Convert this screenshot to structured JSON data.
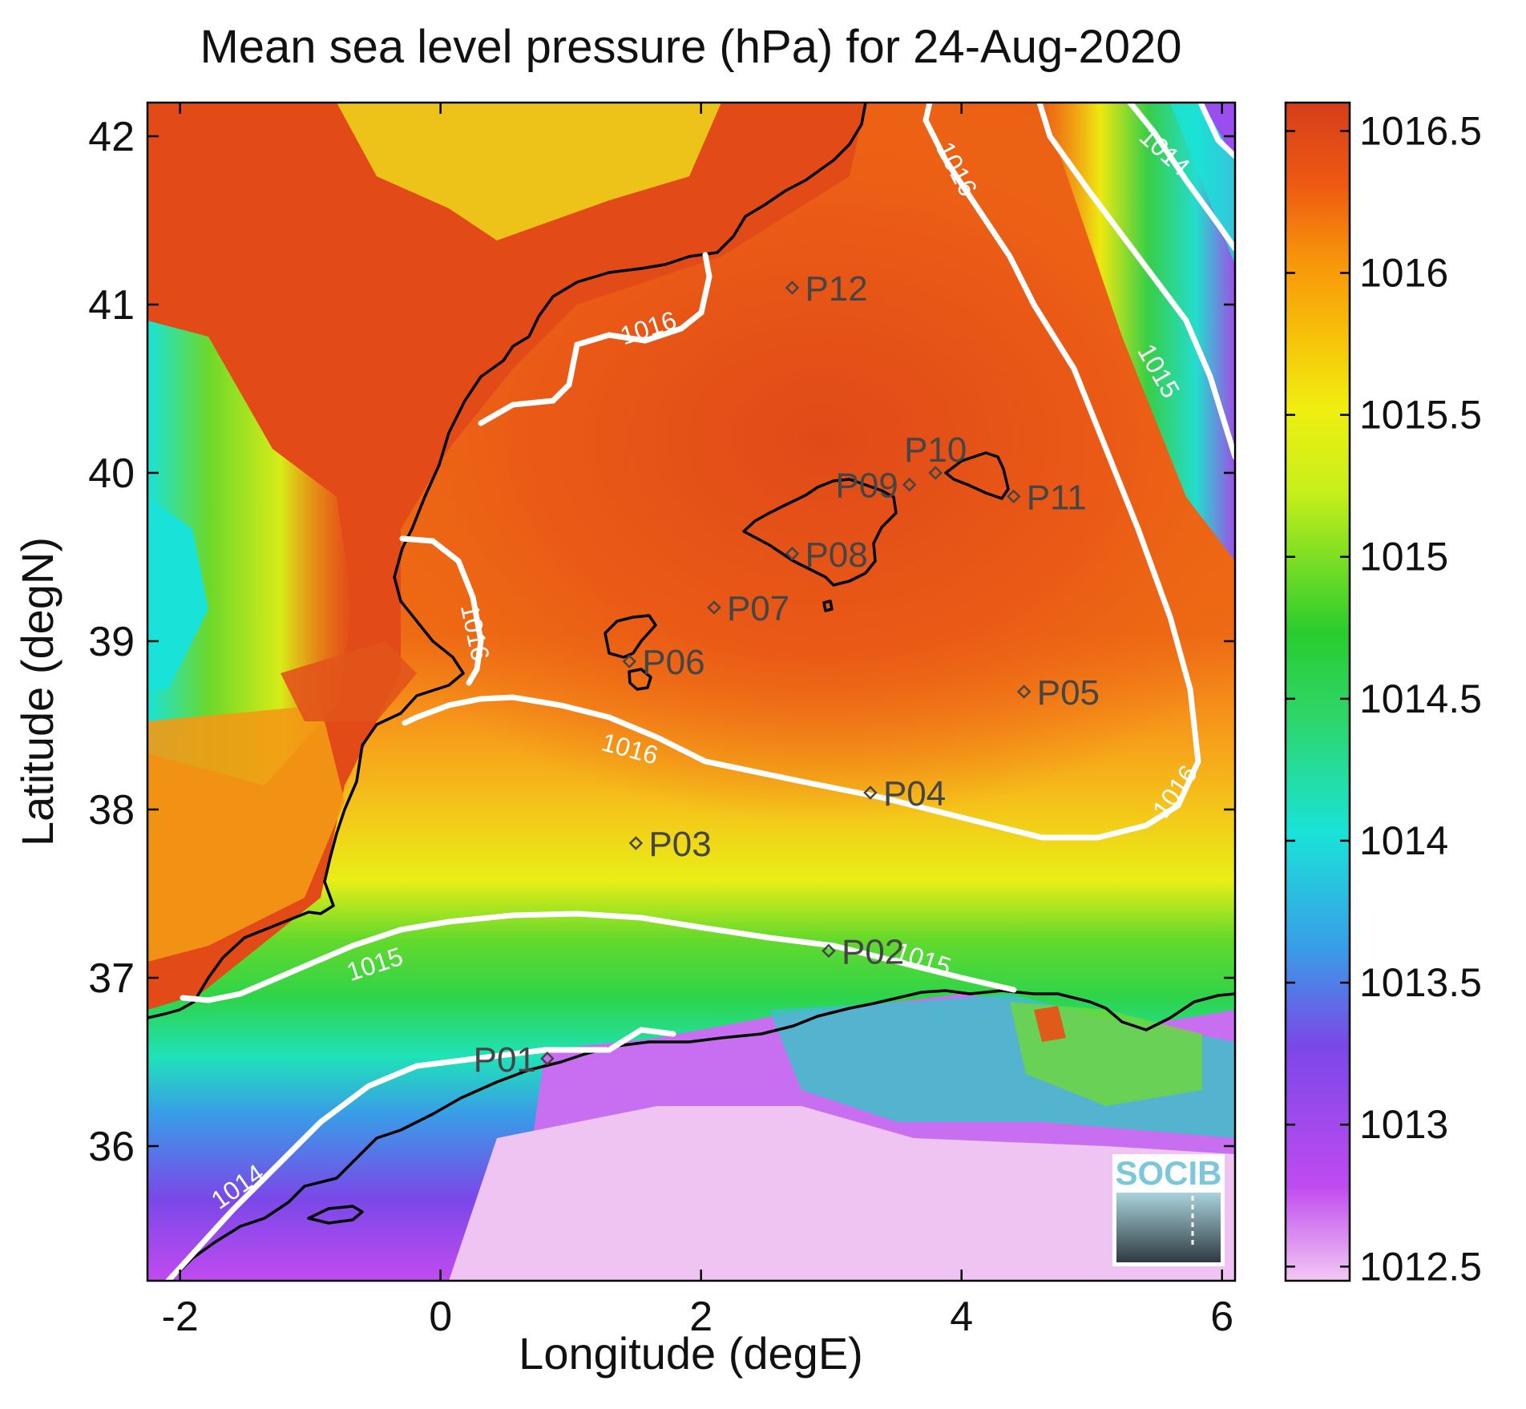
{
  "title": "Mean sea level pressure (hPa) for 24-Aug-2020",
  "xlabel": "Longitude (degE)",
  "ylabel": "Latitude (degN)",
  "xlim": [
    -2.25,
    6.1
  ],
  "ylim": [
    35.2,
    42.2
  ],
  "xticks": [
    {
      "value": -2,
      "label": "-2"
    },
    {
      "value": 0,
      "label": "0"
    },
    {
      "value": 2,
      "label": "2"
    },
    {
      "value": 4,
      "label": "4"
    },
    {
      "value": 6,
      "label": "6"
    }
  ],
  "yticks": [
    {
      "value": 36,
      "label": "36"
    },
    {
      "value": 37,
      "label": "37"
    },
    {
      "value": 38,
      "label": "38"
    },
    {
      "value": 39,
      "label": "39"
    },
    {
      "value": 40,
      "label": "40"
    },
    {
      "value": 41,
      "label": "41"
    },
    {
      "value": 42,
      "label": "42"
    }
  ],
  "colorbar": {
    "range": [
      1012.45,
      1016.6
    ],
    "ticks": [
      {
        "value": 1012.5,
        "label": "1012.5"
      },
      {
        "value": 1013,
        "label": "1013"
      },
      {
        "value": 1013.5,
        "label": "1013.5"
      },
      {
        "value": 1014,
        "label": "1014"
      },
      {
        "value": 1014.5,
        "label": "1014.5"
      },
      {
        "value": 1015,
        "label": "1015"
      },
      {
        "value": 1015.5,
        "label": "1015.5"
      },
      {
        "value": 1016,
        "label": "1016"
      },
      {
        "value": 1016.5,
        "label": "1016.5"
      }
    ],
    "colors": [
      "#f2c8f2",
      "#c04bf0",
      "#7a48e8",
      "#3a9be8",
      "#19e3d8",
      "#2ed668",
      "#29cc2e",
      "#c8ef1a",
      "#f0ef10",
      "#f7c20a",
      "#f8920a",
      "#ee5a12",
      "#d63e1a"
    ]
  },
  "stations": [
    {
      "id": "P01",
      "lon": 0.82,
      "lat": 36.52,
      "label_side": "left"
    },
    {
      "id": "P02",
      "lon": 2.98,
      "lat": 37.16,
      "label_side": "right"
    },
    {
      "id": "P03",
      "lon": 1.5,
      "lat": 37.8,
      "label_side": "right"
    },
    {
      "id": "P04",
      "lon": 3.3,
      "lat": 38.1,
      "label_side": "right"
    },
    {
      "id": "P05",
      "lon": 4.48,
      "lat": 38.7,
      "label_side": "right"
    },
    {
      "id": "P06",
      "lon": 1.45,
      "lat": 38.88,
      "label_side": "right"
    },
    {
      "id": "P07",
      "lon": 2.1,
      "lat": 39.2,
      "label_side": "right"
    },
    {
      "id": "P08",
      "lon": 2.7,
      "lat": 39.52,
      "label_side": "right"
    },
    {
      "id": "P09",
      "lon": 3.6,
      "lat": 39.93,
      "label_side": "left"
    },
    {
      "id": "P10",
      "lon": 3.8,
      "lat": 40.0,
      "label_side": "above"
    },
    {
      "id": "P11",
      "lon": 4.4,
      "lat": 39.86,
      "label_side": "right"
    },
    {
      "id": "P12",
      "lon": 2.7,
      "lat": 41.1,
      "label_side": "right"
    }
  ],
  "contour_labels": [
    {
      "text": "1016",
      "lon": 1.6,
      "lat": 40.85,
      "angle": -18
    },
    {
      "text": "1016",
      "lon": 3.95,
      "lat": 41.8,
      "angle": 62
    },
    {
      "text": "1016",
      "lon": 0.25,
      "lat": 39.05,
      "angle": 78
    },
    {
      "text": "1016",
      "lon": 1.45,
      "lat": 38.35,
      "angle": 15
    },
    {
      "text": "1016",
      "lon": 5.65,
      "lat": 38.1,
      "angle": -55
    },
    {
      "text": "1015",
      "lon": 5.5,
      "lat": 40.6,
      "angle": 60
    },
    {
      "text": "1014",
      "lon": 5.55,
      "lat": 41.9,
      "angle": 42
    },
    {
      "text": "1015",
      "lon": -0.5,
      "lat": 37.07,
      "angle": -18
    },
    {
      "text": "1015",
      "lon": 3.7,
      "lat": 37.1,
      "angle": 18
    },
    {
      "text": "1014",
      "lon": -1.55,
      "lat": 35.75,
      "angle": -35
    }
  ],
  "logo": {
    "text": "SOCIB"
  }
}
